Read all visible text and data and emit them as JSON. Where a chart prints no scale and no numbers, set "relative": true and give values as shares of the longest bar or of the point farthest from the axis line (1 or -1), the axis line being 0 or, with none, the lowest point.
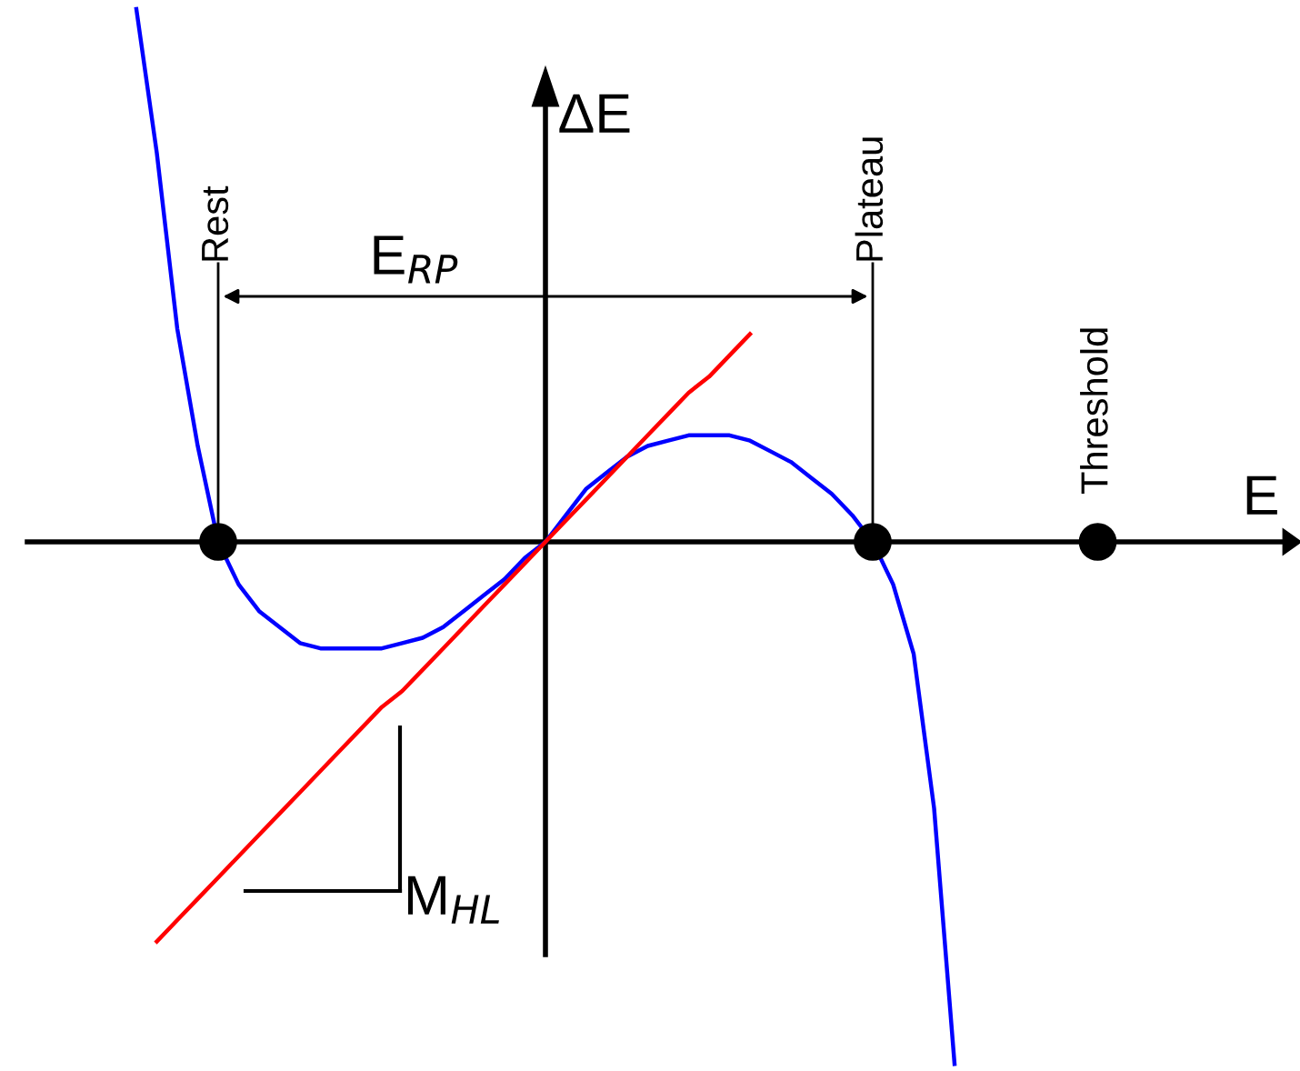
{
  "chart_data": {
    "type": "line",
    "relative": true,
    "xlabel": "E",
    "ylabel": "ΔE",
    "categories": [
      null,
      null,
      null,
      null,
      "Rest",
      null,
      null,
      null,
      null,
      null,
      null,
      null,
      null,
      null,
      null,
      null,
      null,
      null,
      null,
      null,
      null,
      null,
      null,
      null,
      null,
      null,
      null,
      null,
      null,
      null,
      null,
      null,
      null,
      null,
      null,
      null,
      "Plateau",
      null,
      null,
      null,
      null,
      null,
      null,
      null,
      null,
      null,
      null,
      "Threshold"
    ],
    "series": [
      {
        "color": "#0000ff",
        "values": [
          1.0,
          0.73,
          0.4,
          0.18,
          0,
          -0.08,
          -0.13,
          -0.16,
          -0.19,
          -0.2,
          -0.2,
          -0.2,
          -0.2,
          -0.19,
          -0.18,
          -0.16,
          -0.13,
          -0.1,
          -0.07,
          -0.03,
          0,
          0.05,
          0.1,
          0.13,
          0.16,
          0.18,
          0.19,
          0.2,
          0.2,
          0.2,
          0.19,
          0.17,
          0.15,
          0.12,
          0.09,
          0.05,
          0,
          -0.08,
          -0.21,
          -0.5,
          -0.98,
          null,
          null,
          null,
          null,
          null,
          null,
          null
        ]
      },
      {
        "color": "#ff0000",
        "values": [
          null,
          -0.75,
          -0.71,
          -0.67,
          -0.63,
          -0.59,
          -0.55,
          -0.51,
          -0.47,
          -0.43,
          -0.39,
          -0.35,
          -0.31,
          -0.28,
          -0.24,
          -0.2,
          -0.16,
          -0.12,
          -0.08,
          -0.04,
          0,
          0.04,
          0.08,
          0.12,
          0.16,
          0.2,
          0.24,
          0.28,
          0.31,
          0.35,
          0.39,
          null,
          null,
          null,
          null,
          null,
          null,
          null,
          null,
          null,
          null,
          null,
          null,
          null,
          null,
          null,
          null,
          null
        ]
      },
      {
        "type": "scatter",
        "marker": "circle",
        "color": "#000000",
        "values": [
          null,
          null,
          null,
          null,
          0,
          null,
          null,
          null,
          null,
          null,
          null,
          null,
          null,
          null,
          null,
          null,
          null,
          null,
          null,
          null,
          null,
          null,
          null,
          null,
          null,
          null,
          null,
          null,
          null,
          null,
          null,
          null,
          null,
          null,
          null,
          null,
          0,
          null,
          null,
          null,
          null,
          null,
          null,
          null,
          null,
          null,
          null,
          0
        ]
      }
    ],
    "ref_lines": [
      {
        "axis": "x",
        "value": "Rest",
        "color": "#000000"
      },
      {
        "axis": "x",
        "value": "Plateau",
        "color": "#000000"
      }
    ],
    "annotations": [
      "E$_{RP}$",
      "M$_{HL}$"
    ]
  }
}
